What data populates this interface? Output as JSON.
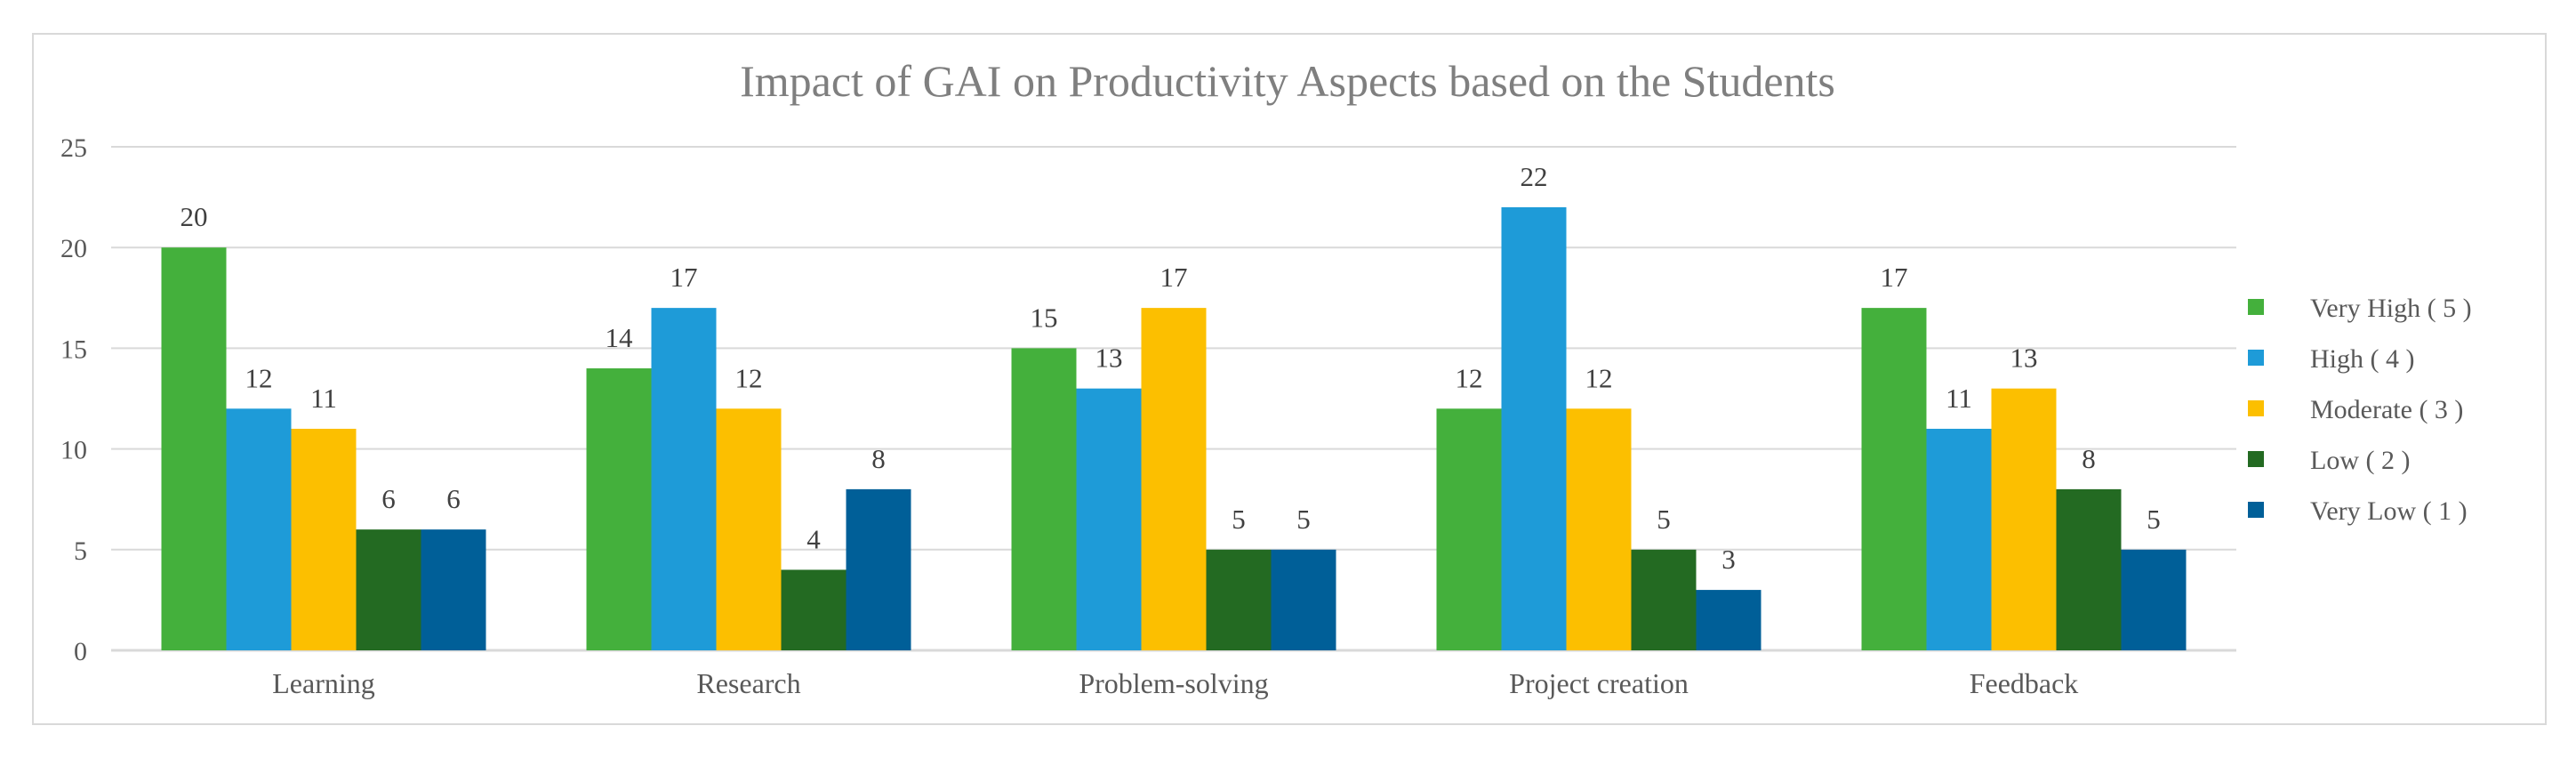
{
  "chart_data": {
    "type": "bar",
    "title": "Impact of GAI on Productivity Aspects based on the Students",
    "xlabel": "",
    "ylabel": "",
    "categories": [
      "Learning",
      "Research",
      "Problem-solving",
      "Project creation",
      "Feedback"
    ],
    "series": [
      {
        "name": "Very High ( 5 )",
        "values": [
          20,
          14,
          15,
          12,
          17
        ],
        "color": "#44b03c"
      },
      {
        "name": "High ( 4 )",
        "values": [
          12,
          17,
          13,
          22,
          11
        ],
        "color": "#1e9bd8"
      },
      {
        "name": "Moderate ( 3 )",
        "values": [
          11,
          12,
          17,
          12,
          13
        ],
        "color": "#fcbf00"
      },
      {
        "name": "Low ( 2 )",
        "values": [
          6,
          4,
          5,
          5,
          8
        ],
        "color": "#236a22"
      },
      {
        "name": "Very Low ( 1 )",
        "values": [
          6,
          8,
          5,
          3,
          5
        ],
        "color": "#005f98"
      }
    ],
    "ylim": [
      0,
      25
    ],
    "yticks": [
      0,
      5,
      10,
      15,
      20,
      25
    ],
    "grid": true,
    "legend_position": "right",
    "data_labels": true
  }
}
